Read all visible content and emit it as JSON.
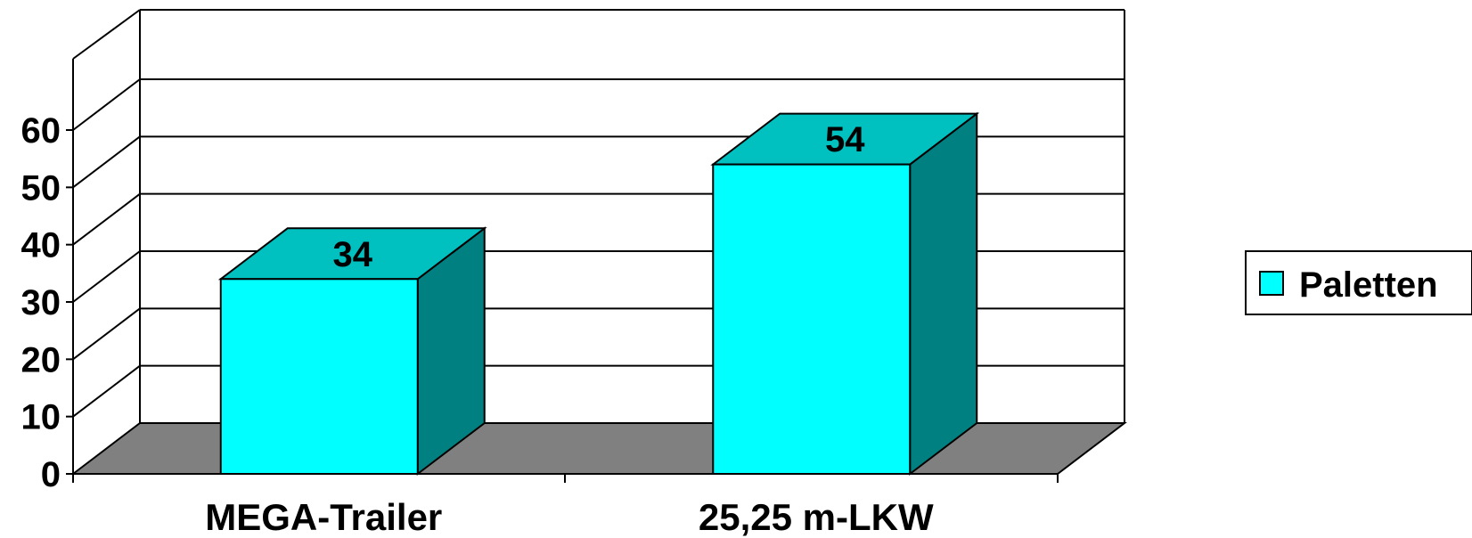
{
  "chart_data": {
    "type": "bar",
    "categories": [
      "MEGA-Trailer",
      "25,25 m-LKW"
    ],
    "series": [
      {
        "name": "Paletten",
        "values": [
          34,
          54
        ]
      }
    ],
    "data_labels": [
      "34",
      "54"
    ],
    "ylim": [
      0,
      60
    ],
    "yticks": [
      "0",
      "10",
      "20",
      "30",
      "40",
      "50",
      "60"
    ],
    "grid": true,
    "three_d": true,
    "legend_position": "right",
    "colors": {
      "bar_front": "#00FFFF",
      "bar_top": "#00C0C0",
      "bar_side": "#008080",
      "floor": "#808080",
      "grid": "#000000"
    }
  }
}
